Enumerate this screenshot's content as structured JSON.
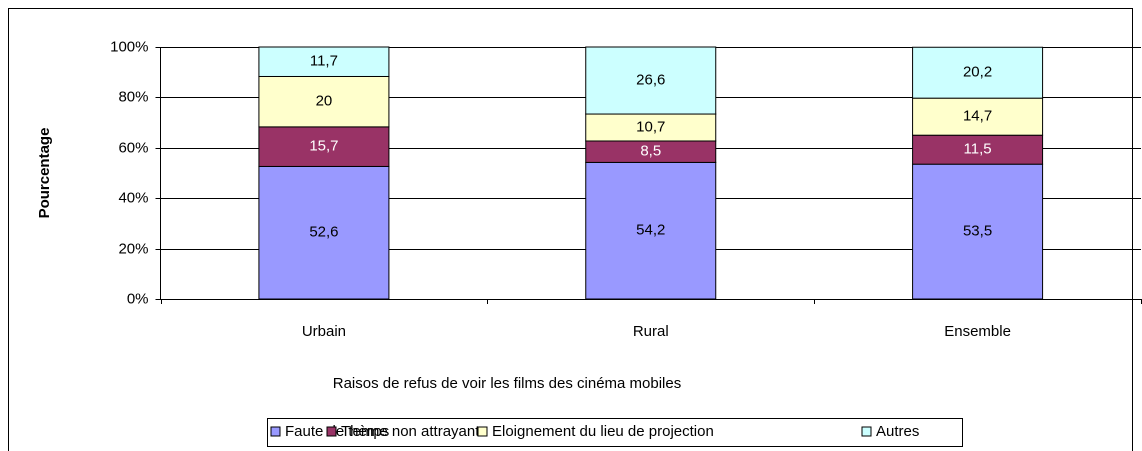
{
  "chart_data": {
    "type": "stacked-bar",
    "xlabel": "Raisos de refus de voir les films des cinéma mobiles",
    "ylabel": "Pourcentage",
    "categories": [
      "Urbain",
      "Rural",
      "Ensemble"
    ],
    "series": [
      {
        "name": "Faute de temps",
        "color": "#9999ff",
        "values": [
          52.6,
          54.2,
          53.5
        ],
        "value_labels": [
          "52,6",
          "54,2",
          "53,5"
        ]
      },
      {
        "name": "Thème non attrayant",
        "color": "#993366",
        "values": [
          15.7,
          8.5,
          11.5
        ],
        "value_labels": [
          "15,7",
          "8,5",
          "11,5"
        ]
      },
      {
        "name": "Eloignement du lieu de projection",
        "color": "#ffffcc",
        "values": [
          20,
          10.7,
          14.7
        ],
        "value_labels": [
          "20",
          "10,7",
          "14,7"
        ]
      },
      {
        "name": "Autres",
        "color": "#ccffff",
        "values": [
          11.7,
          26.6,
          20.2
        ],
        "value_labels": [
          "11,7",
          "26,6",
          "20,2"
        ]
      }
    ],
    "ylim": [
      0,
      100
    ],
    "yticks": [
      {
        "value": 0,
        "label": "0%"
      },
      {
        "value": 20,
        "label": "20%"
      },
      {
        "value": 40,
        "label": "40%"
      },
      {
        "value": 60,
        "label": "60%"
      },
      {
        "value": 80,
        "label": "80%"
      },
      {
        "value": 100,
        "label": "100%"
      }
    ],
    "grid": true,
    "legend": "bottom"
  }
}
